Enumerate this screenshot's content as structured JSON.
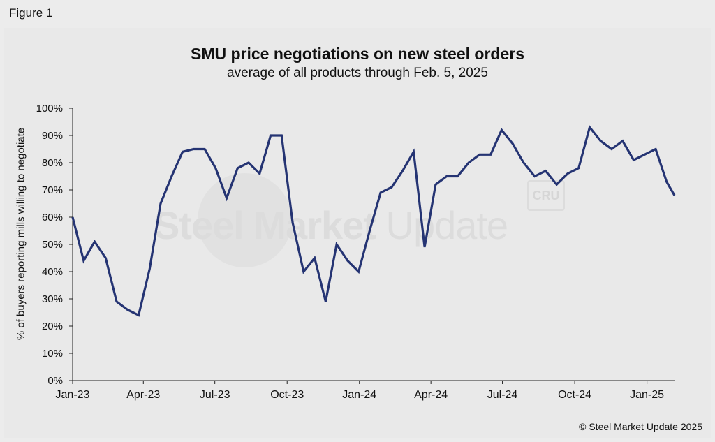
{
  "figure_label": "Figure 1",
  "copyright": "© Steel Market Update 2025",
  "watermark": {
    "brand_bold": "Steel Market",
    "brand_light": "Update",
    "mark": "CRU"
  },
  "colors": {
    "line": "#253473",
    "background": "#e9e9e9",
    "axis": "#222222"
  },
  "chart_data": {
    "type": "line",
    "title": "SMU price negotiations on new steel orders",
    "subtitle": "average of all products through Feb. 5, 2025",
    "xlabel": "",
    "ylabel": "% of buyers reporting mills willing to negotiate",
    "ylim": [
      0,
      100
    ],
    "y_ticks": [
      0,
      10,
      20,
      30,
      40,
      50,
      60,
      70,
      80,
      90,
      100
    ],
    "y_tick_labels": [
      "0%",
      "10%",
      "20%",
      "30%",
      "40%",
      "50%",
      "60%",
      "70%",
      "80%",
      "90%",
      "100%"
    ],
    "x_range": [
      "2023-01-01",
      "2025-02-05"
    ],
    "x_ticks": [
      {
        "date": "2023-01-01",
        "label": "Jan-23"
      },
      {
        "date": "2023-04-01",
        "label": "Apr-23"
      },
      {
        "date": "2023-07-01",
        "label": "Jul-23"
      },
      {
        "date": "2023-10-01",
        "label": "Oct-23"
      },
      {
        "date": "2024-01-01",
        "label": "Jan-24"
      },
      {
        "date": "2024-04-01",
        "label": "Apr-24"
      },
      {
        "date": "2024-07-01",
        "label": "Jul-24"
      },
      {
        "date": "2024-10-01",
        "label": "Oct-24"
      },
      {
        "date": "2025-01-01",
        "label": "Jan-25"
      }
    ],
    "grid": false,
    "legend": "none",
    "series": [
      {
        "points": [
          [
            "2023-01-01",
            60
          ],
          [
            "2023-01-15",
            44
          ],
          [
            "2023-01-29",
            51
          ],
          [
            "2023-02-12",
            45
          ],
          [
            "2023-02-26",
            29
          ],
          [
            "2023-03-12",
            26
          ],
          [
            "2023-03-26",
            24
          ],
          [
            "2023-04-09",
            41
          ],
          [
            "2023-04-23",
            65
          ],
          [
            "2023-05-07",
            75
          ],
          [
            "2023-05-21",
            84
          ],
          [
            "2023-06-04",
            85
          ],
          [
            "2023-06-18",
            85
          ],
          [
            "2023-07-02",
            78
          ],
          [
            "2023-07-16",
            67
          ],
          [
            "2023-07-30",
            78
          ],
          [
            "2023-08-13",
            80
          ],
          [
            "2023-08-27",
            76
          ],
          [
            "2023-09-10",
            90
          ],
          [
            "2023-09-24",
            90
          ],
          [
            "2023-10-08",
            58
          ],
          [
            "2023-10-22",
            40
          ],
          [
            "2023-11-05",
            45
          ],
          [
            "2023-11-19",
            29
          ],
          [
            "2023-12-03",
            50
          ],
          [
            "2023-12-17",
            44
          ],
          [
            "2023-12-31",
            40
          ],
          [
            "2024-01-14",
            55
          ],
          [
            "2024-01-28",
            69
          ],
          [
            "2024-02-11",
            71
          ],
          [
            "2024-02-25",
            77
          ],
          [
            "2024-03-10",
            84
          ],
          [
            "2024-03-24",
            49
          ],
          [
            "2024-04-07",
            72
          ],
          [
            "2024-04-21",
            75
          ],
          [
            "2024-05-05",
            75
          ],
          [
            "2024-05-19",
            80
          ],
          [
            "2024-06-02",
            83
          ],
          [
            "2024-06-16",
            83
          ],
          [
            "2024-06-30",
            92
          ],
          [
            "2024-07-14",
            87
          ],
          [
            "2024-07-28",
            80
          ],
          [
            "2024-08-11",
            75
          ],
          [
            "2024-08-25",
            77
          ],
          [
            "2024-09-08",
            72
          ],
          [
            "2024-09-22",
            76
          ],
          [
            "2024-10-06",
            78
          ],
          [
            "2024-10-20",
            93
          ],
          [
            "2024-11-03",
            88
          ],
          [
            "2024-11-17",
            85
          ],
          [
            "2024-12-01",
            88
          ],
          [
            "2024-12-15",
            81
          ],
          [
            "2024-12-29",
            83
          ],
          [
            "2025-01-12",
            85
          ],
          [
            "2025-01-26",
            73
          ],
          [
            "2025-02-05",
            68
          ]
        ]
      }
    ]
  }
}
